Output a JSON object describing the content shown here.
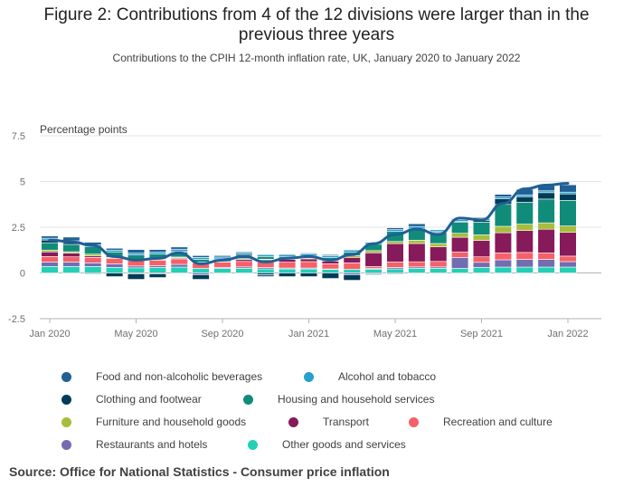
{
  "title_line1": "Figure 2: Contributions from 4 of the 12 divisions were larger than in the",
  "title_line2": "previous three years",
  "subtitle": "Contributions to the CPIH 12-month inflation rate, UK, January 2020 to January 2022",
  "source": "Source: Office for National Statistics - Consumer price inflation",
  "colors": {
    "food": "#206095",
    "alcohol": "#27a0cc",
    "clothing": "#003c57",
    "housing": "#118c7b",
    "furniture": "#a8bd3a",
    "transport": "#871a5b",
    "recreation": "#f66068",
    "restaurants": "#746cb1",
    "other": "#22d0b6",
    "line": "#206095"
  },
  "chart_data": {
    "type": "bar",
    "stacked": true,
    "ylabel": "Percentage points",
    "ylim": [
      -2.5,
      7.5
    ],
    "yticks": [
      -2.5,
      0,
      2.5,
      5,
      7.5
    ],
    "ytick_labels": [
      "-2.5",
      "0",
      "2.5",
      "5",
      "7.5"
    ],
    "xtick_labels": [
      {
        "index": 0,
        "label": "Jan 2020"
      },
      {
        "index": 4,
        "label": "May 2020"
      },
      {
        "index": 8,
        "label": "Sep 2020"
      },
      {
        "index": 12,
        "label": "Jan 2021"
      },
      {
        "index": 16,
        "label": "May 2021"
      },
      {
        "index": 20,
        "label": "Sep 2021"
      },
      {
        "index": 24,
        "label": "Jan 2022"
      }
    ],
    "categories": [
      "Jan 2020",
      "Feb 2020",
      "Mar 2020",
      "Apr 2020",
      "May 2020",
      "Jun 2020",
      "Jul 2020",
      "Aug 2020",
      "Sep 2020",
      "Oct 2020",
      "Nov 2020",
      "Dec 2020",
      "Jan 2021",
      "Feb 2021",
      "Mar 2021",
      "Apr 2021",
      "May 2021",
      "Jun 2021",
      "Jul 2021",
      "Aug 2021",
      "Sep 2021",
      "Oct 2021",
      "Nov 2021",
      "Dec 2021",
      "Jan 2022"
    ],
    "series": [
      {
        "key": "other",
        "name": "Other goods and services",
        "values": [
          0.35,
          0.35,
          0.35,
          0.3,
          0.28,
          0.3,
          0.32,
          0.25,
          0.25,
          0.25,
          0.22,
          0.22,
          0.22,
          0.2,
          0.2,
          0.2,
          0.22,
          0.25,
          0.25,
          0.25,
          0.3,
          0.32,
          0.32,
          0.32,
          0.32
        ]
      },
      {
        "key": "restaurants",
        "name": "Restaurants and hotels",
        "values": [
          0.25,
          0.25,
          0.2,
          0.2,
          0.1,
          0.1,
          0.15,
          -0.1,
          0.05,
          0.08,
          0.08,
          0.05,
          0.05,
          0.02,
          -0.1,
          0.05,
          0.08,
          0.08,
          0.08,
          0.6,
          0.28,
          0.4,
          0.42,
          0.42,
          0.3
        ]
      },
      {
        "key": "recreation",
        "name": "Recreation and culture",
        "values": [
          0.3,
          0.28,
          0.3,
          0.3,
          0.3,
          0.3,
          0.3,
          0.3,
          0.3,
          0.3,
          0.3,
          0.32,
          0.35,
          0.28,
          0.35,
          0.1,
          0.3,
          0.28,
          0.3,
          0.3,
          0.3,
          0.38,
          0.38,
          0.35,
          0.3
        ]
      },
      {
        "key": "transport",
        "name": "Transport",
        "values": [
          0.25,
          0.2,
          0.08,
          0.0,
          -0.05,
          -0.05,
          0.05,
          0.05,
          0.0,
          0.1,
          0.12,
          0.15,
          0.15,
          0.15,
          0.3,
          0.75,
          1.0,
          1.0,
          0.8,
          0.8,
          0.9,
          1.1,
          1.2,
          1.3,
          1.3
        ]
      },
      {
        "key": "furniture",
        "name": "Furniture and household goods",
        "values": [
          0.1,
          0.08,
          0.1,
          0.05,
          0.02,
          0.05,
          0.05,
          0.0,
          0.02,
          0.05,
          0.03,
          0.02,
          0.05,
          0.05,
          0.1,
          0.12,
          0.12,
          0.18,
          0.18,
          0.22,
          0.3,
          0.35,
          0.35,
          0.35,
          0.35
        ]
      },
      {
        "key": "housing",
        "name": "Housing and household services",
        "values": [
          0.4,
          0.4,
          0.4,
          0.3,
          0.28,
          0.28,
          0.28,
          0.15,
          0.15,
          0.15,
          0.15,
          0.12,
          0.12,
          0.15,
          0.18,
          0.35,
          0.55,
          0.6,
          0.6,
          0.6,
          0.7,
          1.2,
          1.2,
          1.3,
          1.4
        ]
      },
      {
        "key": "clothing",
        "name": "Clothing and footwear",
        "values": [
          0.15,
          0.1,
          -0.05,
          -0.2,
          -0.3,
          -0.2,
          0.05,
          -0.25,
          0.0,
          0.08,
          -0.1,
          -0.2,
          -0.2,
          -0.3,
          -0.3,
          -0.05,
          -0.05,
          0.05,
          0.05,
          0.05,
          0.1,
          0.3,
          0.3,
          0.35,
          0.35
        ]
      },
      {
        "key": "alcohol",
        "name": "Alcohol and tobacco",
        "values": [
          0.1,
          0.1,
          0.1,
          0.1,
          0.1,
          0.1,
          0.1,
          0.1,
          0.1,
          0.1,
          0.1,
          0.1,
          0.1,
          0.1,
          0.1,
          0.1,
          0.1,
          0.1,
          0.1,
          0.1,
          0.1,
          0.1,
          0.1,
          0.1,
          0.1
        ]
      },
      {
        "key": "food",
        "name": "Food and non-alcoholic beverages",
        "values": [
          0.12,
          0.2,
          0.15,
          0.1,
          0.2,
          0.15,
          0.12,
          0.1,
          0.08,
          0.05,
          -0.1,
          0.05,
          0.05,
          0.05,
          0.05,
          -0.05,
          0.1,
          0.15,
          0.0,
          0.05,
          0.05,
          0.15,
          0.3,
          0.35,
          0.4
        ]
      }
    ],
    "line": {
      "name": "CPIH",
      "values": [
        1.8,
        1.7,
        1.5,
        0.9,
        0.7,
        0.8,
        1.1,
        0.5,
        0.7,
        0.9,
        0.6,
        0.8,
        0.9,
        0.7,
        1.0,
        1.6,
        2.1,
        2.4,
        2.1,
        3.0,
        2.9,
        3.8,
        4.6,
        4.8,
        4.9
      ]
    },
    "legend": [
      [
        "food",
        "alcohol"
      ],
      [
        "clothing",
        "housing"
      ],
      [
        "furniture",
        "transport",
        "recreation"
      ],
      [
        "restaurants",
        "other"
      ]
    ],
    "legend_position": "bottom"
  }
}
